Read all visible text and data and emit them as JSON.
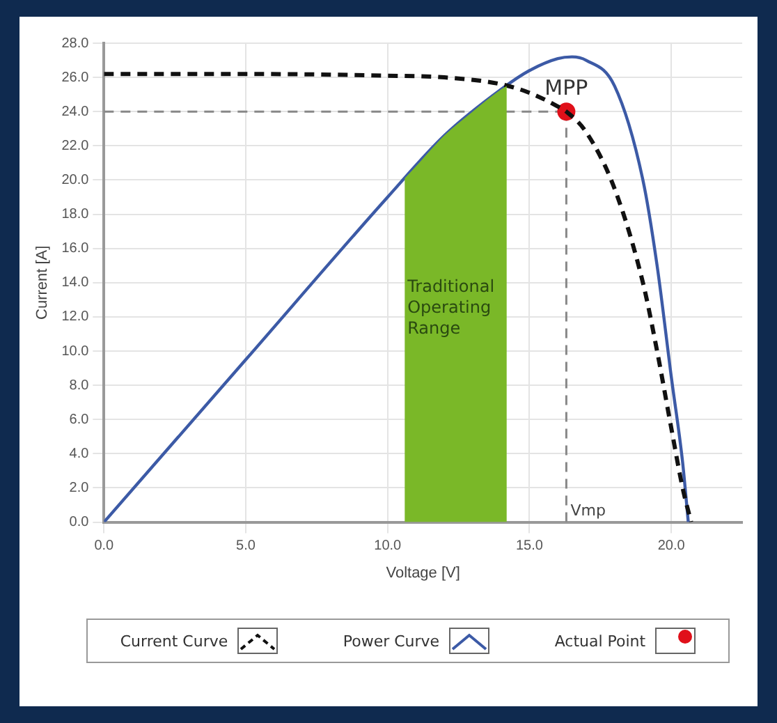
{
  "chart_data": {
    "type": "line",
    "xlabel": "Voltage [V]",
    "ylabel": "Current [A]",
    "xlim": [
      0,
      22.5
    ],
    "xticks": [
      {
        "value": 0,
        "label": "0.0"
      },
      {
        "value": 5,
        "label": "5.0"
      },
      {
        "value": 10,
        "label": "10.0"
      },
      {
        "value": 15,
        "label": "15.0"
      },
      {
        "value": 20,
        "label": "20.0"
      }
    ],
    "ylim": [
      0,
      28
    ],
    "yticks": [
      {
        "value": 0,
        "label": "0.0"
      },
      {
        "value": 2,
        "label": "2.0"
      },
      {
        "value": 4,
        "label": "4.0"
      },
      {
        "value": 6,
        "label": "6.0"
      },
      {
        "value": 8,
        "label": "8.0"
      },
      {
        "value": 10,
        "label": "10.0"
      },
      {
        "value": 12,
        "label": "12.0"
      },
      {
        "value": 14,
        "label": "14.0"
      },
      {
        "value": 16,
        "label": "16.0"
      },
      {
        "value": 18,
        "label": "18.0"
      },
      {
        "value": 20,
        "label": "20.0"
      },
      {
        "value": 22,
        "label": "22.0"
      },
      {
        "value": 24,
        "label": "24.0"
      },
      {
        "value": 26,
        "label": "26.0"
      },
      {
        "value": 28,
        "label": "28.0"
      }
    ],
    "grid": true,
    "legend": "bottom",
    "series": [
      {
        "type": "area",
        "color": "#7ab828",
        "x": [
          10.6,
          11,
          12,
          13,
          14,
          14.2
        ],
        "values": [
          20.1,
          20.8,
          22.6,
          24.0,
          25.3,
          25.5
        ]
      },
      {
        "name": "Current Curve",
        "line_style": "dashed",
        "color": "#111111",
        "x": [
          0,
          5,
          10,
          12,
          14,
          15,
          16,
          16.3,
          17,
          18,
          19,
          19.5,
          20,
          20.4,
          20.7
        ],
        "values": [
          26.2,
          26.2,
          26.1,
          26.0,
          25.6,
          25.1,
          24.3,
          24.0,
          22.8,
          19.5,
          14.0,
          10.0,
          5.5,
          2.0,
          0
        ]
      },
      {
        "name": "Power Curve",
        "line_style": "solid",
        "color": "#3c5aa6",
        "x": [
          0,
          5,
          10,
          12,
          14,
          15,
          16,
          16.5,
          17,
          18,
          19,
          19.5,
          20,
          20.4,
          20.6
        ],
        "values": [
          0,
          9.5,
          19,
          22.6,
          25.3,
          26.4,
          27.1,
          27.2,
          27.0,
          25.5,
          20,
          15,
          8.5,
          3.5,
          0
        ]
      },
      {
        "name": "Actual Point",
        "type": "scatter",
        "color": "#e0101a",
        "x": [
          16.3
        ],
        "values": [
          24.0
        ]
      }
    ],
    "ref_lines": [
      {
        "axis": "y",
        "value": 24,
        "label": null,
        "color": "#888888",
        "line_style": "dashed"
      },
      {
        "axis": "x",
        "value": 16.3,
        "label": "Vmp",
        "color": "#888888",
        "line_style": "dashed"
      }
    ],
    "annotations": [
      {
        "text": "MPP",
        "x": 16.3,
        "y": 24.0
      },
      {
        "text": "Traditional\nOperating\nRange",
        "x": 10.6,
        "y": 14.2
      }
    ]
  }
}
